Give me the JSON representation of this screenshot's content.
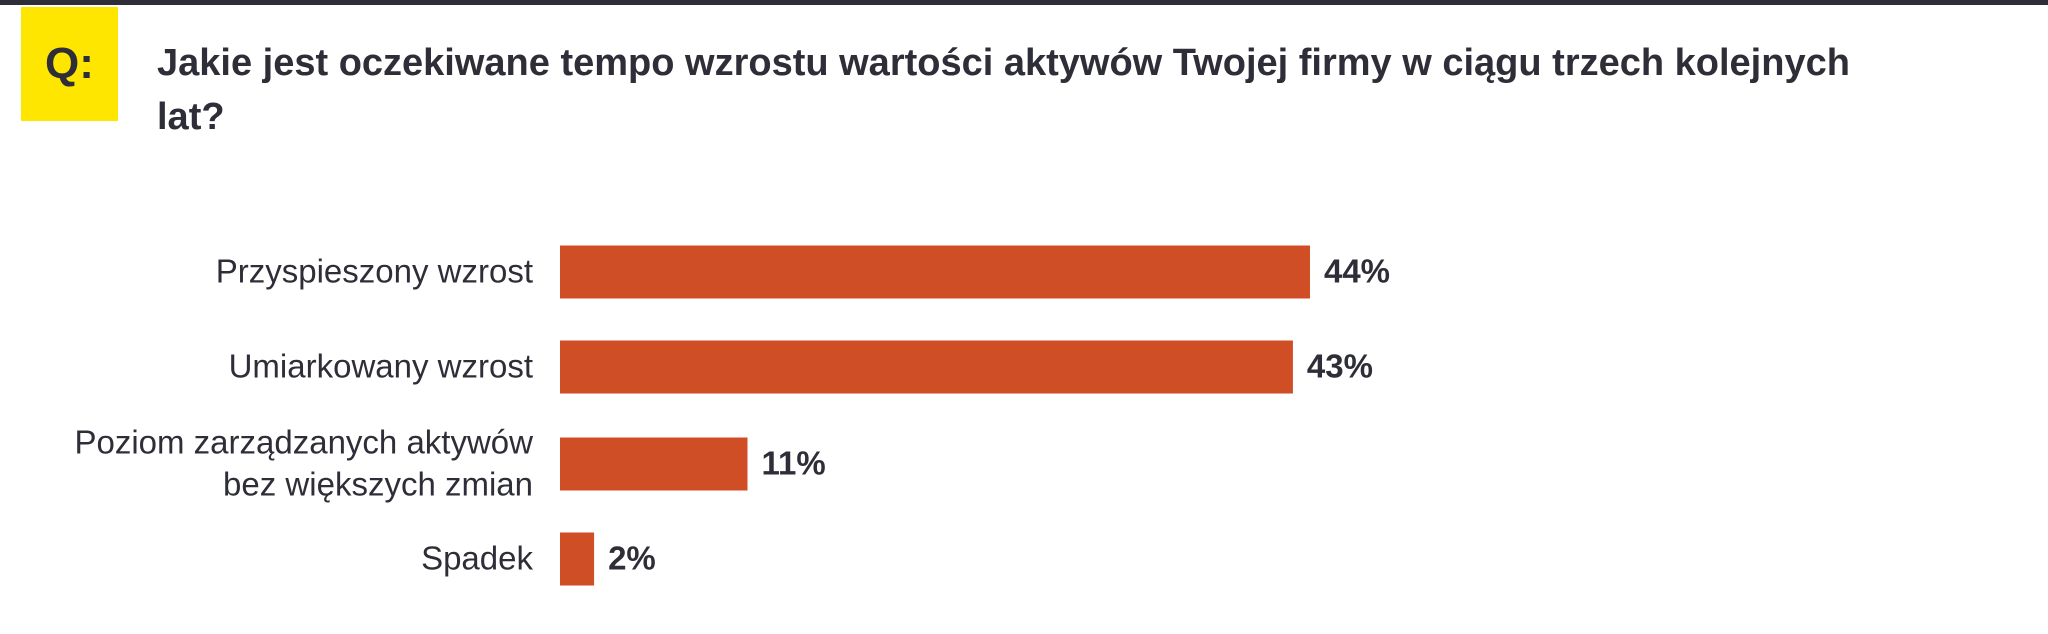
{
  "chart_data": {
    "type": "hbar",
    "badge": "Q:",
    "title": "Jakie jest oczekiwane tempo wzrostu wartości aktywów Twojej firmy w ciągu trzech kolejnych lat?",
    "categories": [
      [
        "Przyspieszony wzrost"
      ],
      [
        "Umiarkowany wzrost"
      ],
      [
        "Poziom zarządzanych aktywów",
        "bez większych zmian"
      ],
      [
        "Spadek"
      ]
    ],
    "values": [
      44,
      43,
      11,
      2
    ],
    "value_labels": [
      "44%",
      "43%",
      "11%",
      "2%"
    ],
    "color": "#d04e26"
  }
}
